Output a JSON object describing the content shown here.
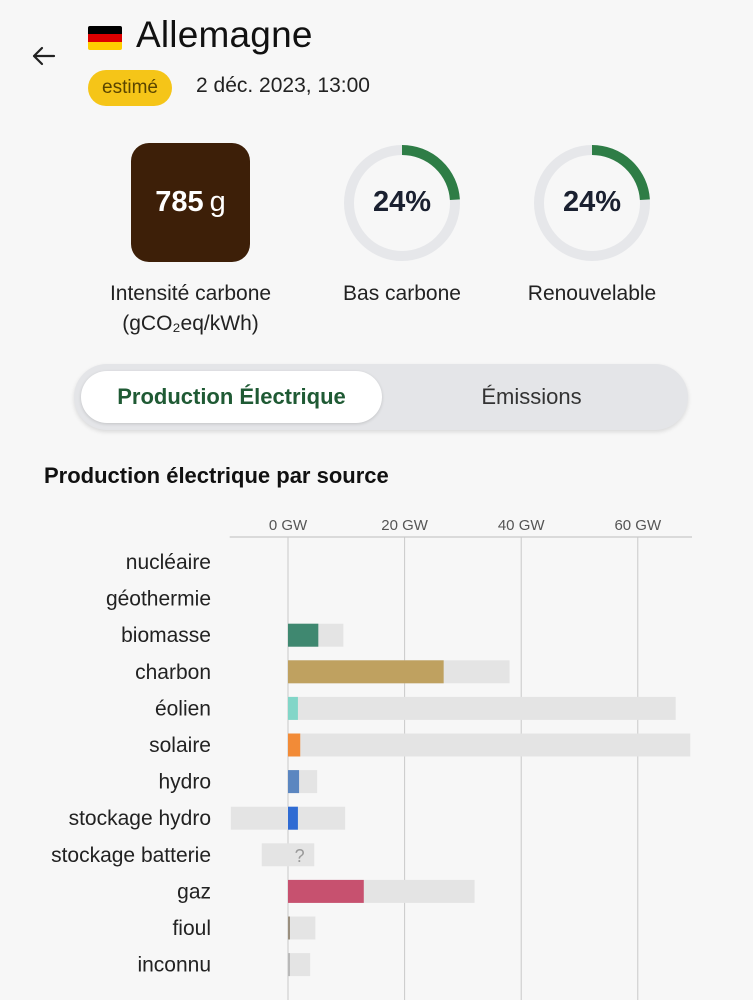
{
  "header": {
    "country": "Allemagne",
    "status_badge": "estimé",
    "datetime": "2 déc. 2023, 13:00",
    "flag_colors": [
      "#000000",
      "#dd0000",
      "#ffce00"
    ]
  },
  "metrics": {
    "carbon_intensity": {
      "value": "785",
      "unit": "g",
      "label_line1": "Intensité carbone",
      "label_line2": "(gCO₂eq/kWh)",
      "color": "#3d1f08"
    },
    "low_carbon": {
      "value": "24%",
      "percent": 24,
      "label": "Bas carbone"
    },
    "renewable": {
      "value": "24%",
      "percent": 24,
      "label": "Renouvelable"
    },
    "ring_color": "#2e7d46",
    "ring_track_color": "#e6e7ea"
  },
  "tabs": [
    {
      "label": "Production Électrique",
      "active": true
    },
    {
      "label": "Émissions",
      "active": false
    }
  ],
  "section_title": "Production électrique par source",
  "chart_data": {
    "type": "bar",
    "title": "Production électrique par source",
    "xlabel": "",
    "x_unit": "GW",
    "xlim": [
      -10,
      70
    ],
    "x_ticks": [
      {
        "value": 0,
        "label": "0 GW"
      },
      {
        "value": 20,
        "label": "20 GW"
      },
      {
        "value": 40,
        "label": "40 GW"
      },
      {
        "value": 60,
        "label": "60 GW"
      }
    ],
    "grid": true,
    "unknown_marker": "?",
    "categories": [
      "nucléaire",
      "géothermie",
      "biomasse",
      "charbon",
      "éolien",
      "solaire",
      "hydro",
      "stockage hydro",
      "stockage batterie",
      "gaz",
      "fioul",
      "inconnu"
    ],
    "series": [
      {
        "values": [
          0,
          0,
          5.2,
          26.7,
          1.7,
          2.1,
          1.9,
          1.7,
          null,
          13.0,
          0.3,
          0.3
        ]
      }
    ],
    "capacity_ranges": [
      [
        0,
        0
      ],
      [
        0,
        0
      ],
      [
        0,
        9.5
      ],
      [
        0,
        38.0
      ],
      [
        0,
        66.5
      ],
      [
        0,
        69.0
      ],
      [
        0,
        5.0
      ],
      [
        -9.8,
        9.8
      ],
      [
        -4.5,
        4.5
      ],
      [
        0,
        32.0
      ],
      [
        0,
        4.7
      ],
      [
        0,
        3.8
      ]
    ],
    "colors": [
      "#8e44ad",
      "#c0392b",
      "#3f8870",
      "#bfa160",
      "#82d6c8",
      "#f28b37",
      "#5b86c0",
      "#2f6bd3",
      "#b9b9b9",
      "#c7516f",
      "#9a8f7e",
      "#b9b9b9"
    ]
  }
}
